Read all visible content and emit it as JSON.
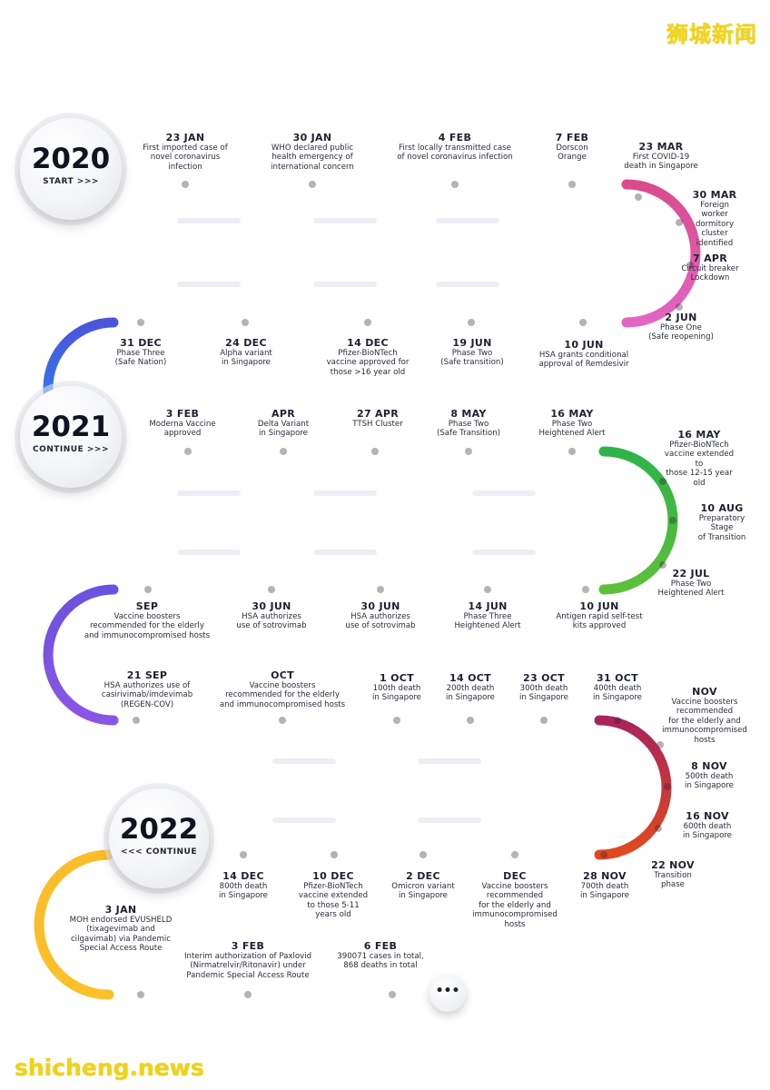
{
  "brand": "狮城新闻",
  "site": "shicheng.news",
  "more": "•••",
  "years": [
    {
      "year": "2020",
      "sub": "START >>>"
    },
    {
      "year": "2021",
      "sub": "CONTINUE >>>"
    },
    {
      "year": "2022",
      "sub": "<<< CONTINUE"
    }
  ],
  "events": [
    {
      "date": "23 JAN",
      "text": "First imported case of\nnovel coronavirus\ninfection"
    },
    {
      "date": "30 JAN",
      "text": "WHO declared public\nhealth emergency of\ninternational concern"
    },
    {
      "date": "4 FEB",
      "text": "First locally transmitted case\nof novel coronavirus infection"
    },
    {
      "date": "7 FEB",
      "text": "Dorscon\nOrange"
    },
    {
      "date": "23 MAR",
      "text": "First COVID-19\ndeath in Singapore"
    },
    {
      "date": "30 MAR",
      "text": "Foreign worker\ndormitory cluster\nidentified"
    },
    {
      "date": "7 APR",
      "text": "Circuit breaker\nLockdown"
    },
    {
      "date": "2 JUN",
      "text": "Phase One\n(Safe reopening)"
    },
    {
      "date": "10 JUN",
      "text": "HSA grants conditional\napproval of Remdesivir"
    },
    {
      "date": "19 JUN",
      "text": "Phase Two\n(Safe transition)"
    },
    {
      "date": "14 DEC",
      "text": "Pfizer-BioNTech\nvaccine approved for\nthose >16 year old"
    },
    {
      "date": "24 DEC",
      "text": "Alpha variant\nin Singapore"
    },
    {
      "date": "31 DEC",
      "text": "Phase Three\n(Safe Nation)"
    },
    {
      "date": "3 FEB",
      "text": "Moderna Vaccine\napproved"
    },
    {
      "date": "APR",
      "text": "Delta Variant\nin Singapore"
    },
    {
      "date": "27 APR",
      "text": "TTSH Cluster"
    },
    {
      "date": "8 MAY",
      "text": "Phase Two\n(Safe Transition)"
    },
    {
      "date": "16 MAY",
      "text": "Phase Two\nHeightened Alert"
    },
    {
      "date": "16 MAY",
      "text": "Pfizer-BioNTech\nvaccine extended to\nthose 12-15 year old"
    },
    {
      "date": "10 AUG",
      "text": "Preparatory Stage\nof Transition"
    },
    {
      "date": "22 JUL",
      "text": "Phase Two\nHeightened Alert"
    },
    {
      "date": "10 JUN",
      "text": "Antigen rapid self-test\nkits approved"
    },
    {
      "date": "14 JUN",
      "text": "Phase Three\nHeightened Alert"
    },
    {
      "date": "30 JUN",
      "text": "HSA authorizes\nuse of sotrovimab"
    },
    {
      "date": "30 JUN",
      "text": "HSA authorizes\nuse of sotrovimab"
    },
    {
      "date": "SEP",
      "text": "Vaccine boosters\nrecommended for the elderly\nand immunocompromised hosts"
    },
    {
      "date": "21 SEP",
      "text": "HSA authorizes use of\ncasirivimab/imdevimab\n(REGEN-COV)"
    },
    {
      "date": "OCT",
      "text": "Vaccine boosters\nrecommended for the elderly\nand immunocompromised hosts"
    },
    {
      "date": "1 OCT",
      "text": "100th death\nin Singapore"
    },
    {
      "date": "14 OCT",
      "text": "200th death\nin Singapore"
    },
    {
      "date": "23 OCT",
      "text": "300th death\nin Singapore"
    },
    {
      "date": "31 OCT",
      "text": "400th death\nin Singapore"
    },
    {
      "date": "NOV",
      "text": "Vaccine boosters\nrecommended\nfor the elderly and\nimmunocompromised\nhosts"
    },
    {
      "date": "8 NOV",
      "text": "500th death\nin Singapore"
    },
    {
      "date": "16 NOV",
      "text": "600th death\nin Singapore"
    },
    {
      "date": "22 NOV",
      "text": "Transition\nphase"
    },
    {
      "date": "28 NOV",
      "text": "700th death\nin Singapore"
    },
    {
      "date": "DEC",
      "text": "Vaccine boosters\nrecommended\nfor the elderly and\nimmunocompromised\nhosts"
    },
    {
      "date": "2 DEC",
      "text": "Omicron variant\nin Singapore"
    },
    {
      "date": "10 DEC",
      "text": "Pfizer-BioNTech\nvaccine extended\nto those 5-11\nyears old"
    },
    {
      "date": "14 DEC",
      "text": "800th death\nin Singapore"
    },
    {
      "date": "3 JAN",
      "text": "MOH endorsed EVUSHELD\n(tixagevimab and\ncilgavimab) via Pandemic\nSpecial Access Route"
    },
    {
      "date": "3 FEB",
      "text": "Interim authorization of Paxlovid\n(Nirmatrelvir/Ritonavir) under\nPandemic Special Access Route"
    },
    {
      "date": "6 FEB",
      "text": "390071 cases in total,\n868 deaths in total"
    }
  ]
}
